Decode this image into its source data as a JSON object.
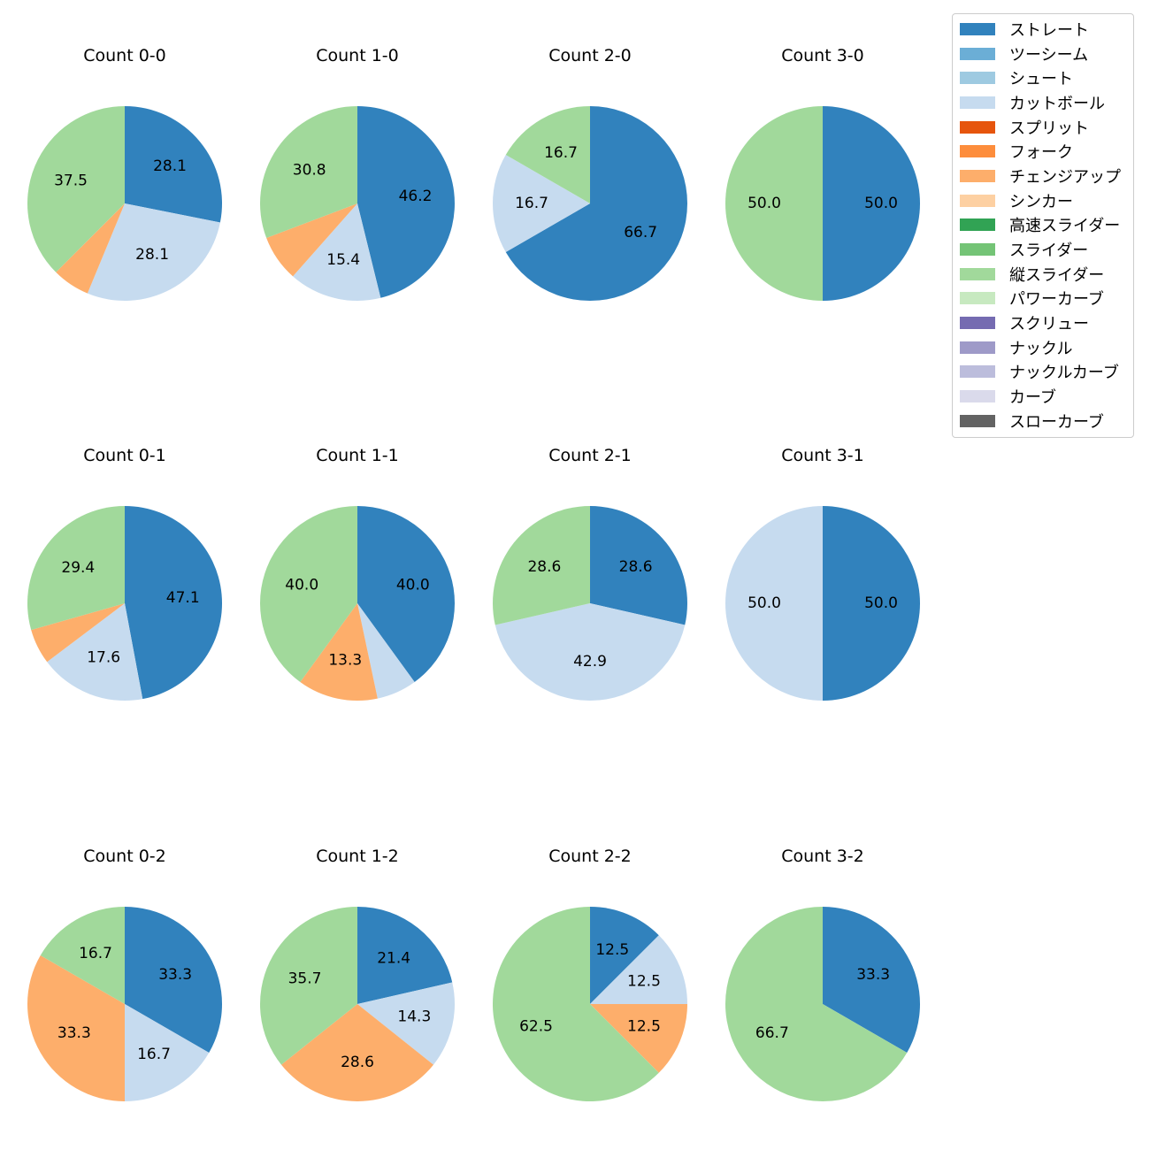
{
  "chart_data": {
    "type": "pie",
    "categories": [
      "ストレート",
      "ツーシーム",
      "シュート",
      "カットボール",
      "スプリット",
      "フォーク",
      "チェンジアップ",
      "シンカー",
      "高速スライダー",
      "スライダー",
      "縦スライダー",
      "パワーカーブ",
      "スクリュー",
      "ナックル",
      "ナックルカーブ",
      "カーブ",
      "スローカーブ"
    ],
    "colors": [
      "#3182bd",
      "#6baed6",
      "#9ecae1",
      "#c6dbef",
      "#e6550d",
      "#fd8d3c",
      "#fdae6b",
      "#fdd0a2",
      "#31a354",
      "#74c476",
      "#a1d99b",
      "#c7e9c0",
      "#756bb1",
      "#9e9ac8",
      "#bcbddc",
      "#dadaeb",
      "#636363"
    ],
    "label_threshold_percent": 10,
    "legend_position": "upper right",
    "panels": [
      {
        "title": "Count 0-0",
        "values": {
          "ストレート": 9,
          "カットボール": 9,
          "チェンジアップ": 2,
          "縦スライダー": 12
        }
      },
      {
        "title": "Count 1-0",
        "values": {
          "ストレート": 6,
          "カットボール": 2,
          "チェンジアップ": 1,
          "縦スライダー": 4
        }
      },
      {
        "title": "Count 2-0",
        "values": {
          "ストレート": 4,
          "カットボール": 1,
          "縦スライダー": 1
        }
      },
      {
        "title": "Count 3-0",
        "values": {
          "ストレート": 1,
          "縦スライダー": 1
        }
      },
      {
        "title": "Count 0-1",
        "values": {
          "ストレート": 8,
          "カットボール": 3,
          "チェンジアップ": 1,
          "縦スライダー": 5
        }
      },
      {
        "title": "Count 1-1",
        "values": {
          "ストレート": 6,
          "カットボール": 1,
          "チェンジアップ": 2,
          "縦スライダー": 6
        }
      },
      {
        "title": "Count 2-1",
        "values": {
          "ストレート": 2,
          "カットボール": 3,
          "縦スライダー": 2
        }
      },
      {
        "title": "Count 3-1",
        "values": {
          "ストレート": 1,
          "カットボール": 1
        }
      },
      {
        "title": "Count 0-2",
        "values": {
          "ストレート": 2,
          "カットボール": 1,
          "チェンジアップ": 2,
          "縦スライダー": 1
        }
      },
      {
        "title": "Count 1-2",
        "values": {
          "ストレート": 3,
          "カットボール": 2,
          "チェンジアップ": 4,
          "縦スライダー": 5
        }
      },
      {
        "title": "Count 2-2",
        "values": {
          "ストレート": 1,
          "カットボール": 1,
          "チェンジアップ": 1,
          "縦スライダー": 5
        }
      },
      {
        "title": "Count 3-2",
        "values": {
          "ストレート": 1,
          "縦スライダー": 2
        }
      }
    ]
  }
}
